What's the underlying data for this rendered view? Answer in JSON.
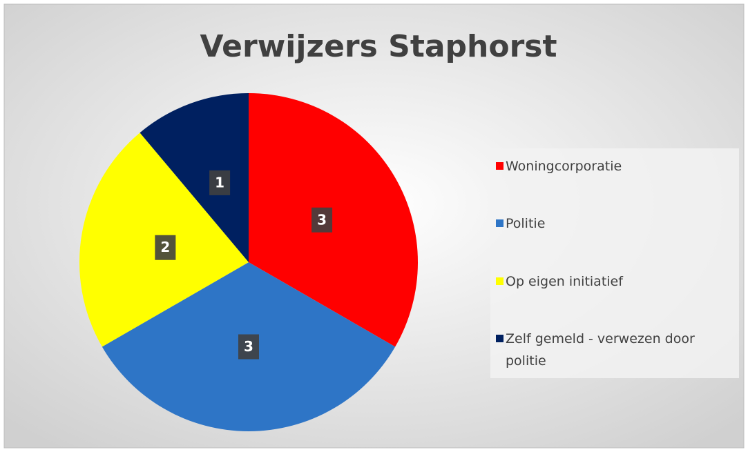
{
  "chart_data": {
    "type": "pie",
    "title": "Verwijzers Staphorst",
    "categories": [
      "Woningcorporatie",
      "Politie",
      "Op eigen initiatief",
      "Zelf gemeld - verwezen door politie"
    ],
    "values": [
      3,
      3,
      2,
      1
    ],
    "colors": [
      "#ff0000",
      "#2e75c6",
      "#ffff00",
      "#002060"
    ],
    "legend": "right"
  }
}
